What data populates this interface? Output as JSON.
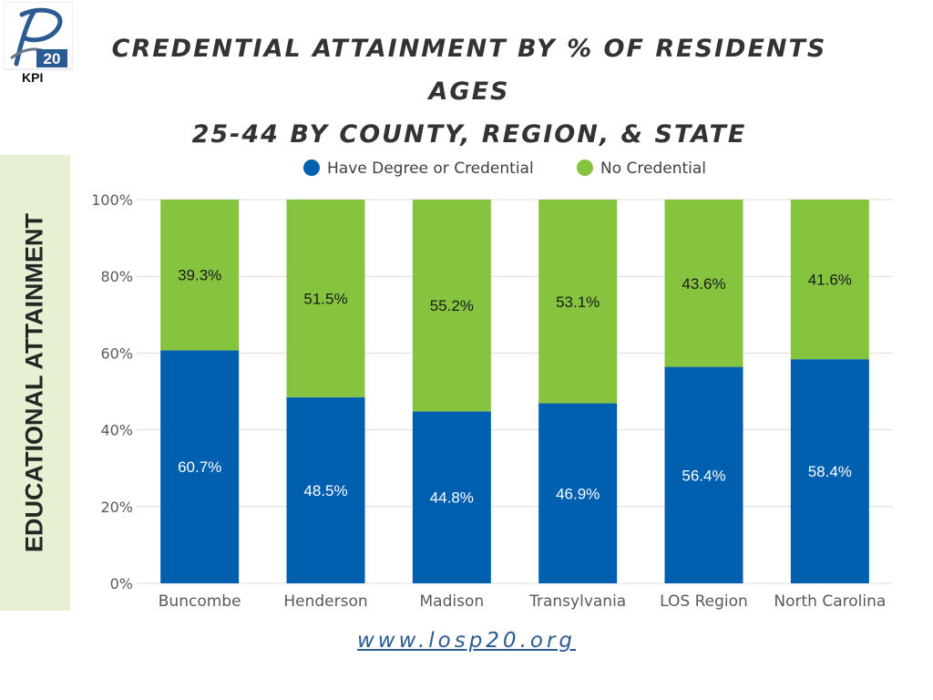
{
  "header": {
    "logo_text": "20",
    "logo_caption": "KPI",
    "title_line1": "CREDENTIAL ATTAINMENT BY % OF RESIDENTS AGES",
    "title_line2": "25-44 BY COUNTY, REGION, & STATE"
  },
  "footer": {
    "url": "www.losp20.org"
  },
  "colors": {
    "degree": "#005fae",
    "no_credential": "#86c440",
    "panel": "#e6f1d3",
    "title": "#333333"
  },
  "chart_data": {
    "type": "bar",
    "stacked": true,
    "ylabel": "EDUCATIONAL ATTAINMENT",
    "ylim": [
      0,
      100
    ],
    "yticks": [
      "0%",
      "20%",
      "40%",
      "60%",
      "80%",
      "100%"
    ],
    "grid": true,
    "legend": "top-center",
    "categories": [
      "Buncombe",
      "Henderson",
      "Madison",
      "Transylvania",
      "LOS Region",
      "North Carolina"
    ],
    "series": [
      {
        "name": "Have Degree or Credential",
        "values": [
          60.7,
          48.5,
          44.8,
          46.9,
          56.4,
          58.4
        ],
        "labels": [
          "60.7%",
          "48.5%",
          "44.8%",
          "46.9%",
          "56.4%",
          "58.4%"
        ]
      },
      {
        "name": "No Credential",
        "values": [
          39.3,
          51.5,
          55.2,
          53.1,
          43.6,
          41.6
        ],
        "labels": [
          "39.3%",
          "51.5%",
          "55.2%",
          "53.1%",
          "43.6%",
          "41.6%"
        ]
      }
    ]
  }
}
